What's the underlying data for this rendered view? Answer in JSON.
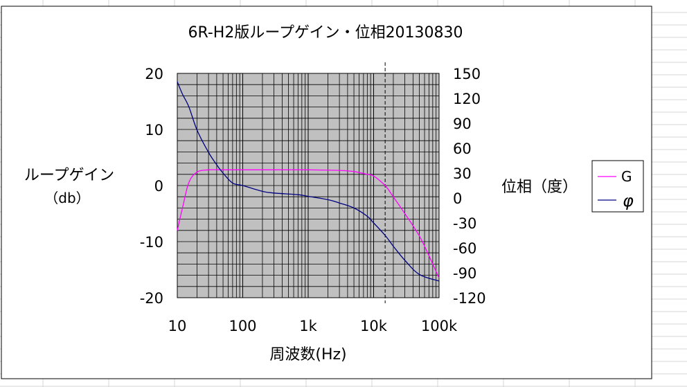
{
  "chart_data": {
    "type": "line",
    "title": "6R-H2版ループゲイン・位相20130830",
    "xlabel": "周波数(Hz)",
    "ylabel_left": "ループゲイン",
    "ylabel_left_unit": "（db）",
    "ylabel_right": "位相（度）",
    "x_scale": "log",
    "xlim": [
      10,
      100000
    ],
    "x_ticks": [
      "10",
      "100",
      "1k",
      "10k",
      "100k"
    ],
    "ylim_left": [
      -20,
      20
    ],
    "y_ticks_left": [
      "20",
      "10",
      "0",
      "-10",
      "-20"
    ],
    "ylim_right": [
      -120,
      150
    ],
    "y_ticks_right": [
      "150",
      "120",
      "90",
      "60",
      "30",
      "0",
      "-30",
      "-60",
      "-90",
      "-120"
    ],
    "grid": true,
    "plot_background": "#c0c0c0",
    "marker_line_x": 15000,
    "legend_position": "right",
    "series": [
      {
        "name": "G",
        "axis": "left",
        "color": "#ff00ff",
        "points": [
          [
            10,
            -8
          ],
          [
            12,
            -4
          ],
          [
            15,
            0.5
          ],
          [
            20,
            2.4
          ],
          [
            30,
            2.8
          ],
          [
            50,
            2.8
          ],
          [
            100,
            2.8
          ],
          [
            300,
            2.8
          ],
          [
            1000,
            2.8
          ],
          [
            3000,
            2.7
          ],
          [
            5000,
            2.5
          ],
          [
            8000,
            2.0
          ],
          [
            10000,
            1.7
          ],
          [
            15000,
            0
          ],
          [
            20000,
            -2
          ],
          [
            30000,
            -5
          ],
          [
            50000,
            -9
          ],
          [
            70000,
            -12.5
          ],
          [
            100000,
            -16.5
          ]
        ]
      },
      {
        "name": "φ",
        "axis": "right",
        "color": "#000080",
        "points": [
          [
            10,
            140
          ],
          [
            12,
            125
          ],
          [
            15,
            110
          ],
          [
            20,
            82
          ],
          [
            30,
            55
          ],
          [
            40,
            40
          ],
          [
            50,
            30
          ],
          [
            70,
            18
          ],
          [
            100,
            15
          ],
          [
            200,
            8
          ],
          [
            300,
            6
          ],
          [
            700,
            4
          ],
          [
            1000,
            2
          ],
          [
            2000,
            -2
          ],
          [
            3000,
            -6
          ],
          [
            5000,
            -12
          ],
          [
            8000,
            -22
          ],
          [
            10000,
            -30
          ],
          [
            15000,
            -45
          ],
          [
            20000,
            -58
          ],
          [
            30000,
            -75
          ],
          [
            50000,
            -92
          ],
          [
            100000,
            -100
          ]
        ]
      }
    ]
  }
}
